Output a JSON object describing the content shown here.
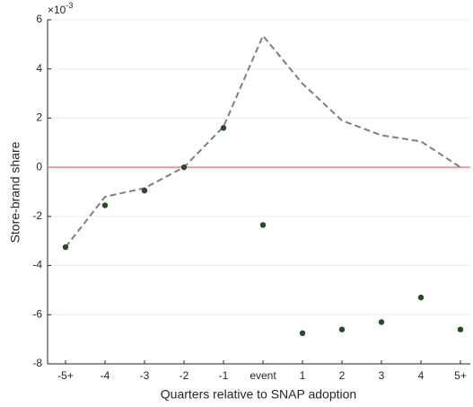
{
  "chart_data": {
    "type": "line",
    "xlabel": "Quarters relative to SNAP adoption",
    "ylabel": "Store-brand share",
    "y_exponent": {
      "base": "×10",
      "power": "-3"
    },
    "categories": [
      "-5+",
      "-4",
      "-3",
      "-2",
      "-1",
      "event",
      "1",
      "2",
      "3",
      "4",
      "5+"
    ],
    "series": [
      {
        "style": "dashed",
        "color": "#7f7f7f",
        "values": [
          -3.25,
          -1.2,
          -0.85,
          0,
          1.65,
          5.35,
          3.4,
          1.9,
          1.3,
          1.05,
          0
        ]
      },
      {
        "style": "markers",
        "color": "#2b4a2b",
        "values": [
          -3.25,
          -1.55,
          -0.95,
          0,
          1.6,
          -2.35,
          -6.75,
          -6.6,
          -6.3,
          -5.3,
          -6.6
        ]
      }
    ],
    "reference_line": {
      "value": 0,
      "color": "#f0857d"
    },
    "ylim": [
      -8,
      6
    ],
    "yticks": [
      -8,
      -6,
      -4,
      -2,
      0,
      2,
      4,
      6
    ],
    "grid": true
  }
}
